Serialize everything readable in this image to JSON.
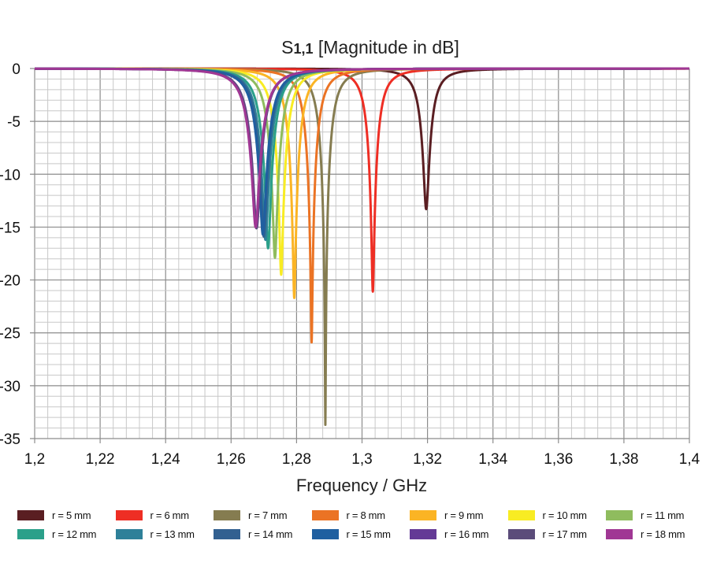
{
  "chart_data": {
    "type": "line",
    "title_main": "S",
    "title_sub": "1,1",
    "title_rest": " [Magnitude in dB]",
    "xlabel": "Frequency / GHz",
    "ylabel": "",
    "xlim": [
      1.2,
      1.4
    ],
    "ylim": [
      -35,
      0
    ],
    "grid": true,
    "legend_position": "bottom",
    "x_ticks": [
      "1,2",
      "1,22",
      "1,24",
      "1,26",
      "1,28",
      "1,3",
      "1,32",
      "1,34",
      "1,36",
      "1,38",
      "1,4"
    ],
    "y_ticks": [
      "0",
      "-5",
      "-10",
      "-15",
      "-20",
      "-25",
      "-30",
      "-35"
    ],
    "series": [
      {
        "name": "r = 5 mm",
        "color": "#5a1e22",
        "f0": 1.3196,
        "min_db": -13.3,
        "halfwidth_ghz": 0.003
      },
      {
        "name": "r = 6 mm",
        "color": "#ee2e24",
        "f0": 1.3033,
        "min_db": -21.1,
        "halfwidth_ghz": 0.0032
      },
      {
        "name": "r = 7 mm",
        "color": "#857c50",
        "f0": 1.2888,
        "min_db": -33.7,
        "halfwidth_ghz": 0.0034
      },
      {
        "name": "r = 8 mm",
        "color": "#eb7324",
        "f0": 1.2846,
        "min_db": -25.9,
        "halfwidth_ghz": 0.0035
      },
      {
        "name": "r = 9 mm",
        "color": "#fbb424",
        "f0": 1.2793,
        "min_db": -21.7,
        "halfwidth_ghz": 0.0036
      },
      {
        "name": "r = 10 mm",
        "color": "#f8ec23",
        "f0": 1.2753,
        "min_db": -19.5,
        "halfwidth_ghz": 0.0037
      },
      {
        "name": "r = 11 mm",
        "color": "#8fbc5e",
        "f0": 1.2734,
        "min_db": -17.9,
        "halfwidth_ghz": 0.0038
      },
      {
        "name": "r = 12 mm",
        "color": "#2ba08a",
        "f0": 1.2713,
        "min_db": -17.0,
        "halfwidth_ghz": 0.0039
      },
      {
        "name": "r = 13 mm",
        "color": "#2e8099",
        "f0": 1.2705,
        "min_db": -16.2,
        "halfwidth_ghz": 0.004
      },
      {
        "name": "r = 14 mm",
        "color": "#326090",
        "f0": 1.27,
        "min_db": -15.9,
        "halfwidth_ghz": 0.004
      },
      {
        "name": "r = 15 mm",
        "color": "#1f5fa0",
        "f0": 1.2697,
        "min_db": -15.7,
        "halfwidth_ghz": 0.0041
      },
      {
        "name": "r = 16 mm",
        "color": "#643a96",
        "f0": 1.2678,
        "min_db": -15.1,
        "halfwidth_ghz": 0.0042
      },
      {
        "name": "r = 17 mm",
        "color": "#5b4c7a",
        "f0": 1.2677,
        "min_db": -15.1,
        "halfwidth_ghz": 0.0042
      },
      {
        "name": "r = 18 mm",
        "color": "#a03794",
        "f0": 1.2675,
        "min_db": -15.0,
        "halfwidth_ghz": 0.0043
      }
    ]
  }
}
